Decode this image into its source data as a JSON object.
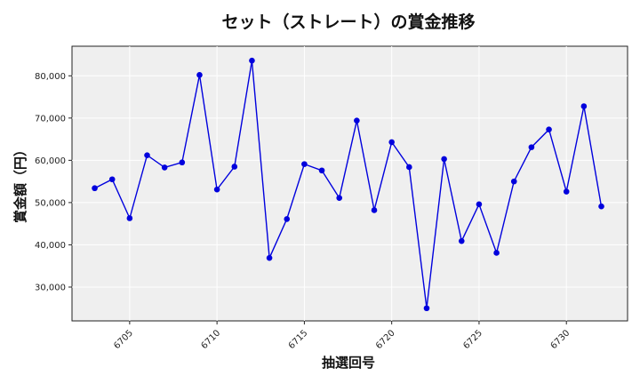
{
  "chart_data": {
    "type": "line",
    "title": "セット（ストレート）の賞金推移",
    "xlabel": "抽選回号",
    "ylabel": "賞金額（円）",
    "x": [
      6703,
      6704,
      6705,
      6706,
      6707,
      6708,
      6709,
      6710,
      6711,
      6712,
      6713,
      6714,
      6715,
      6716,
      6717,
      6718,
      6719,
      6720,
      6721,
      6722,
      6723,
      6724,
      6725,
      6726,
      6727,
      6728,
      6729,
      6730,
      6731,
      6732
    ],
    "series": [
      {
        "values": [
          53400,
          55500,
          46300,
          61200,
          58300,
          59500,
          80200,
          53100,
          58500,
          83600,
          36900,
          46100,
          59100,
          57600,
          51100,
          69400,
          48200,
          64300,
          58400,
          25000,
          60300,
          40900,
          49600,
          38100,
          55000,
          63100,
          67300,
          52600,
          72800,
          49100
        ],
        "color": "#0000dd"
      }
    ],
    "xlim": [
      6701.7,
      6733.5
    ],
    "ylim": [
      22000,
      87000
    ],
    "xticks": [
      "6705",
      "6710",
      "6715",
      "6720",
      "6725",
      "6730"
    ],
    "yticks": [
      "30,000",
      "40,000",
      "50,000",
      "60,000",
      "70,000",
      "80,000"
    ],
    "grid": true,
    "background": "#ebebeb",
    "legend": "none"
  }
}
